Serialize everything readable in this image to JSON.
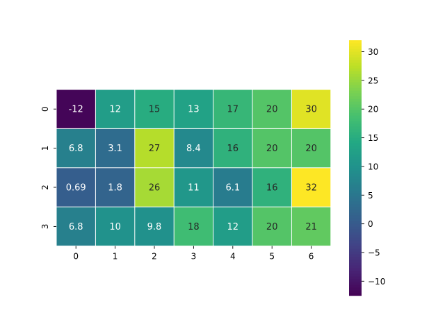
{
  "chart_data": {
    "type": "heatmap",
    "title": "",
    "xlabel": "",
    "ylabel": "",
    "x_categories": [
      "0",
      "1",
      "2",
      "3",
      "4",
      "5",
      "6"
    ],
    "y_categories": [
      "0",
      "1",
      "2",
      "3"
    ],
    "values": [
      [
        -12,
        12,
        15,
        13,
        17,
        20,
        30
      ],
      [
        6.8,
        3.1,
        27,
        8.4,
        16,
        20,
        20
      ],
      [
        0.69,
        1.8,
        26,
        11,
        6.1,
        16,
        32
      ],
      [
        6.8,
        10,
        9.8,
        18,
        12,
        20,
        21
      ]
    ],
    "cell_labels": [
      [
        "-12",
        "12",
        "15",
        "13",
        "17",
        "20",
        "30"
      ],
      [
        "6.8",
        "3.1",
        "27",
        "8.4",
        "16",
        "20",
        "20"
      ],
      [
        "0.69",
        "1.8",
        "26",
        "11",
        "6.1",
        "16",
        "32"
      ],
      [
        "6.8",
        "10",
        "9.8",
        "18",
        "12",
        "20",
        "21"
      ]
    ],
    "colorscale": "viridis",
    "color_range": [
      -12.5,
      32
    ],
    "colorbar_ticks": [
      -10,
      -5,
      0,
      5,
      10,
      15,
      20,
      25,
      30
    ],
    "colorbar_tick_labels": [
      "−10",
      "−5",
      "0",
      "5",
      "10",
      "15",
      "20",
      "25",
      "30"
    ],
    "grid": false,
    "legend": "colorbar-right"
  }
}
